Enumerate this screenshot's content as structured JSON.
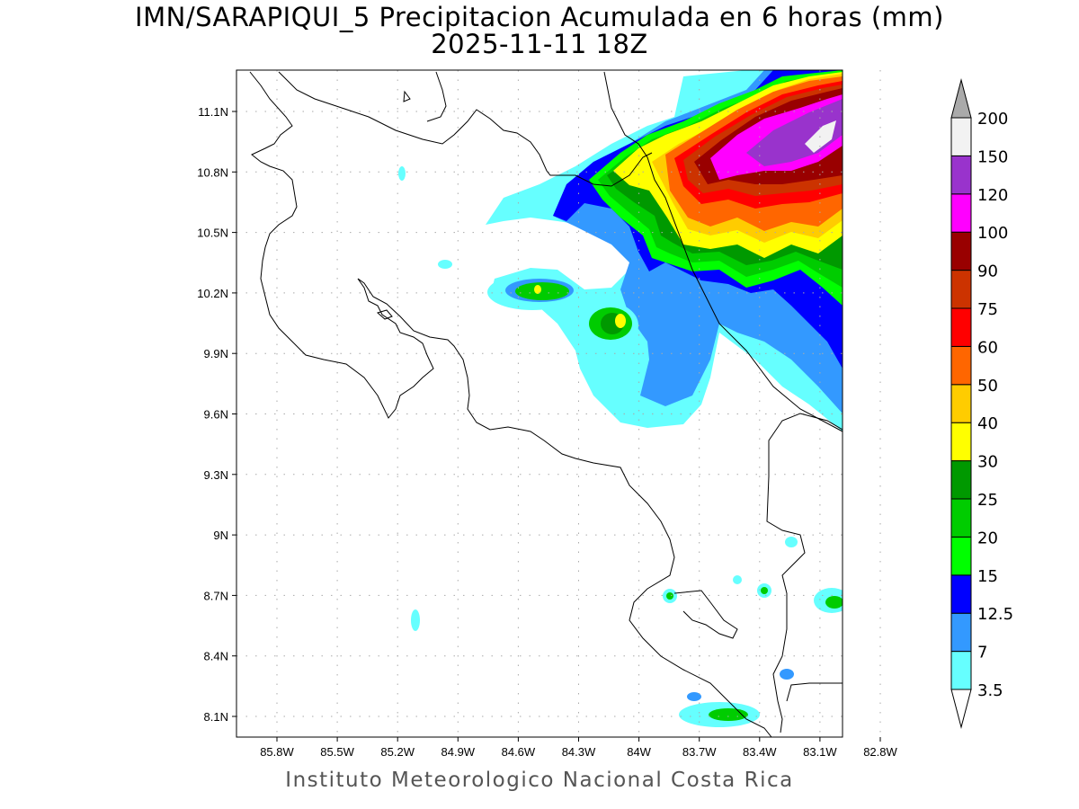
{
  "header": {
    "title": "IMN/SARAPIQUI_5 Precipitacion Acumulada en 6 horas (mm)",
    "subtitle": "2025-11-11 18Z"
  },
  "footer": "Instituto Meteorologico Nacional Costa Rica",
  "map": {
    "lon_ticks": [
      "85.8W",
      "85.5W",
      "85.2W",
      "84.9W",
      "84.6W",
      "84.3W",
      "84W",
      "83.7W",
      "83.4W",
      "83.1W",
      "82.8W"
    ],
    "lat_ticks": [
      "11.1N",
      "10.8N",
      "10.5N",
      "10.2N",
      "9.9N",
      "9.6N",
      "9.3N",
      "9N",
      "8.7N",
      "8.4N",
      "8.1N"
    ],
    "grid": "dotted"
  },
  "colorbar": {
    "levels": [
      "3.5",
      "7",
      "12.5",
      "15",
      "20",
      "25",
      "30",
      "40",
      "50",
      "60",
      "75",
      "90",
      "100",
      "120",
      "150",
      "200"
    ],
    "colors": [
      "#66ffff",
      "#3399ff",
      "#0000ff",
      "#00ff00",
      "#00cc00",
      "#009900",
      "#ffff00",
      "#ffcc00",
      "#ff6600",
      "#ff0000",
      "#cc3300",
      "#990000",
      "#ff00ff",
      "#9933cc",
      "#f2f2f2"
    ],
    "over_color": "#aaaaaa",
    "under_color": "#ffffff"
  }
}
